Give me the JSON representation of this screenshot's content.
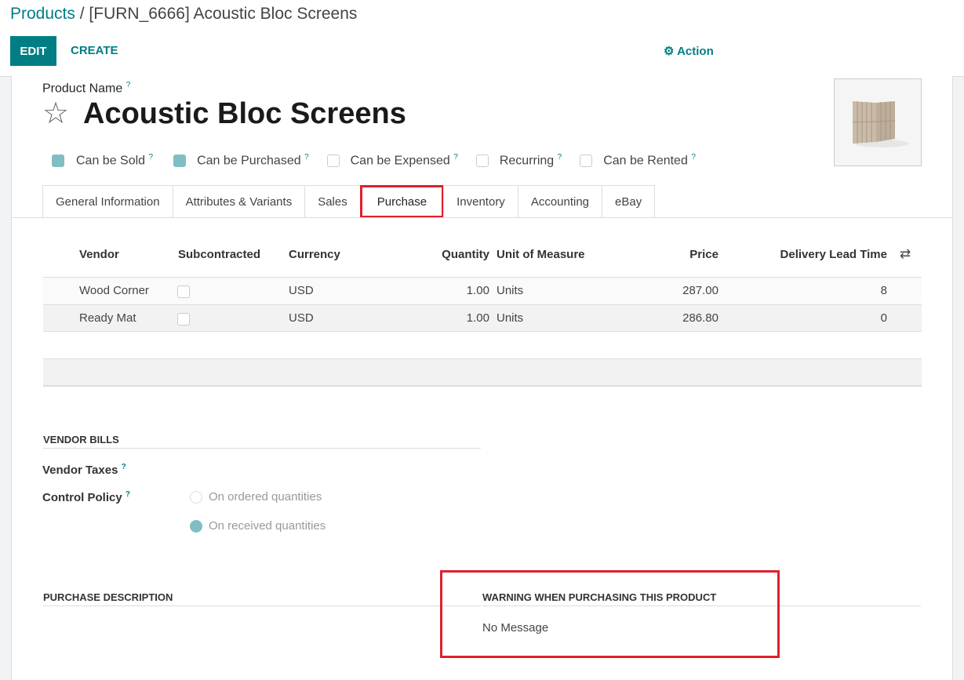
{
  "breadcrumb": {
    "parent": "Products",
    "sep": "/",
    "current": "[FURN_6666] Acoustic Bloc Screens"
  },
  "toolbar": {
    "edit": "EDIT",
    "create": "CREATE",
    "action": "Action"
  },
  "product": {
    "name_label": "Product Name",
    "help": "?",
    "name": "Acoustic Bloc Screens",
    "flags": [
      {
        "label": "Can be Sold",
        "checked": true
      },
      {
        "label": "Can be Purchased",
        "checked": true
      },
      {
        "label": "Can be Expensed",
        "checked": false
      },
      {
        "label": "Recurring",
        "checked": false
      },
      {
        "label": "Can be Rented",
        "checked": false
      }
    ]
  },
  "tabs": [
    "General Information",
    "Attributes & Variants",
    "Sales",
    "Purchase",
    "Inventory",
    "Accounting",
    "eBay"
  ],
  "active_tab": "Purchase",
  "vendors": {
    "headers": [
      "Vendor",
      "Subcontracted",
      "Currency",
      "Quantity",
      "Unit of Measure",
      "Price",
      "Delivery Lead Time"
    ],
    "rows": [
      {
        "vendor": "Wood Corner",
        "subcontracted": false,
        "currency": "USD",
        "quantity": "1.00",
        "uom": "Units",
        "price": "287.00",
        "lead": "8"
      },
      {
        "vendor": "Ready Mat",
        "subcontracted": false,
        "currency": "USD",
        "quantity": "1.00",
        "uom": "Units",
        "price": "286.80",
        "lead": "0"
      }
    ]
  },
  "vendor_bills": {
    "title": "VENDOR BILLS",
    "taxes_label": "Vendor Taxes",
    "control_label": "Control Policy",
    "options": [
      "On ordered quantities",
      "On received quantities"
    ],
    "selected": "On received quantities"
  },
  "purchase_description": {
    "title": "PURCHASE DESCRIPTION"
  },
  "warning": {
    "title": "WARNING WHEN PURCHASING THIS PRODUCT",
    "value": "No Message"
  },
  "colors": {
    "accent": "#017e84",
    "highlight": "#e0202c",
    "checked": "#7fbfc3"
  }
}
